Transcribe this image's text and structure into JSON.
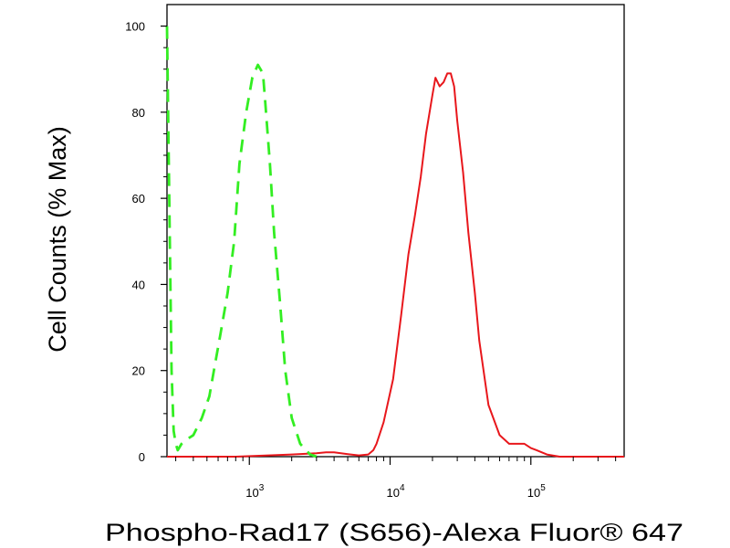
{
  "chart_data": {
    "type": "line",
    "title": "",
    "xlabel": "Phospho-Rad17 (S656)-Alexa Fluor® 647",
    "ylabel": "Cell Counts (% Max)",
    "x_scale": "log",
    "xlim": [
      260,
      460000
    ],
    "ylim": [
      0,
      105
    ],
    "x_ticks": [
      {
        "value": 1000,
        "base": "10",
        "exp": "3"
      },
      {
        "value": 10000,
        "base": "10",
        "exp": "4"
      },
      {
        "value": 100000,
        "base": "10",
        "exp": "5"
      }
    ],
    "y_ticks": [
      "0",
      "20",
      "40",
      "60",
      "80",
      "100"
    ],
    "grid": false,
    "legend": "none",
    "series": [
      {
        "color": "#e8171c",
        "style": "solid",
        "x": [
          260,
          800,
          2000,
          3000,
          3500,
          4000,
          5000,
          6000,
          7000,
          7600,
          8000,
          9000,
          10500,
          12000,
          13500,
          15000,
          16500,
          18000,
          20000,
          21000,
          22500,
          24000,
          25500,
          27000,
          28500,
          30000,
          33000,
          36000,
          40000,
          43000,
          50000,
          60000,
          70000,
          80000,
          90000,
          100000,
          110000,
          130000,
          160000,
          200000,
          460000
        ],
        "y": [
          0,
          0,
          0.5,
          0.8,
          1.0,
          1.0,
          0.6,
          0.3,
          0.5,
          1.5,
          3,
          8,
          18,
          33,
          47,
          56,
          65,
          75,
          84,
          88,
          86,
          87,
          89,
          89,
          86,
          78,
          66,
          52,
          38,
          27,
          12,
          5,
          3,
          3,
          3,
          2,
          1.5,
          0.5,
          0,
          0,
          0
        ]
      },
      {
        "color": "#33ee22",
        "style": "dashed",
        "x": [
          260,
          270,
          280,
          290,
          300,
          310,
          330,
          360,
          400,
          460,
          520,
          560,
          620,
          700,
          780,
          850,
          950,
          1050,
          1150,
          1250,
          1300,
          1400,
          1500,
          1650,
          1800,
          2000,
          2300,
          2700,
          3000
        ],
        "y": [
          100,
          60,
          20,
          6,
          3,
          1.5,
          3,
          4,
          5,
          9,
          14,
          20,
          28,
          38,
          50,
          68,
          80,
          88,
          91,
          89,
          82,
          68,
          52,
          36,
          20,
          9,
          3,
          0.5,
          0
        ]
      }
    ]
  }
}
